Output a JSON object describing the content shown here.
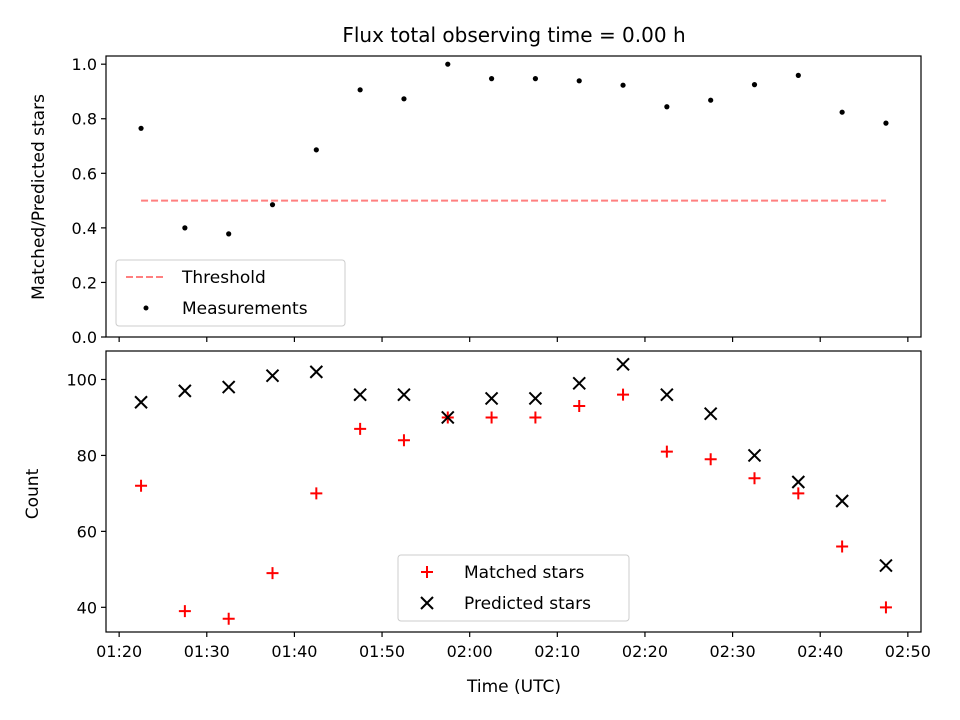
{
  "chart_data": [
    {
      "type": "scatter",
      "title": "Flux total observing time = 0.00 h",
      "xlabel": "",
      "ylabel": "Matched/Predicted stars",
      "ylim": [
        0.0,
        1.03
      ],
      "yticks": [
        0.0,
        0.2,
        0.4,
        0.6,
        0.8,
        1.0
      ],
      "yticklabels": [
        "0.0",
        "0.2",
        "0.4",
        "0.6",
        "0.8",
        "1.0"
      ],
      "xlim": [
        "01:18:30",
        "02:51:30"
      ],
      "x_is_time_of_day": true,
      "xticks": [
        "01:20",
        "01:30",
        "01:40",
        "01:50",
        "02:00",
        "02:10",
        "02:20",
        "02:30",
        "02:40",
        "02:50"
      ],
      "xticklabels": [],
      "threshold": {
        "name": "Threshold",
        "value": 0.5,
        "x_from": "01:22:30",
        "x_to": "02:47:30",
        "color": "#ff7f7f",
        "style": "dashed"
      },
      "series": [
        {
          "name": "Measurements",
          "marker": "dot",
          "color": "#000000",
          "x": [
            "01:22:30",
            "01:27:30",
            "01:32:30",
            "01:37:30",
            "01:42:30",
            "01:47:30",
            "01:52:30",
            "01:57:30",
            "02:02:30",
            "02:07:30",
            "02:12:30",
            "02:17:30",
            "02:22:30",
            "02:27:30",
            "02:32:30",
            "02:37:30",
            "02:42:30",
            "02:47:30"
          ],
          "y": [
            0.765,
            0.4,
            0.378,
            0.485,
            0.686,
            0.906,
            0.873,
            1.0,
            0.947,
            0.947,
            0.939,
            0.923,
            0.844,
            0.868,
            0.925,
            0.959,
            0.824,
            0.784
          ]
        }
      ],
      "legend": {
        "placement": "lower-left",
        "entries": [
          "Threshold",
          "Measurements"
        ]
      },
      "grid": false
    },
    {
      "type": "scatter",
      "title": "",
      "xlabel": "Time (UTC)",
      "ylabel": "Count",
      "ylim": [
        33.5,
        107.5
      ],
      "yticks": [
        40,
        60,
        80,
        100
      ],
      "yticklabels": [
        "40",
        "60",
        "80",
        "100"
      ],
      "xlim": [
        "01:18:30",
        "02:51:30"
      ],
      "x_is_time_of_day": true,
      "xticks": [
        "01:20",
        "01:30",
        "01:40",
        "01:50",
        "02:00",
        "02:10",
        "02:20",
        "02:30",
        "02:40",
        "02:50"
      ],
      "xticklabels": [
        "01:20",
        "01:30",
        "01:40",
        "01:50",
        "02:00",
        "02:10",
        "02:20",
        "02:30",
        "02:40",
        "02:50"
      ],
      "series": [
        {
          "name": "Matched stars",
          "marker": "plus",
          "color": "#ff0000",
          "x": [
            "01:22:30",
            "01:27:30",
            "01:32:30",
            "01:37:30",
            "01:42:30",
            "01:47:30",
            "01:52:30",
            "01:57:30",
            "02:02:30",
            "02:07:30",
            "02:12:30",
            "02:17:30",
            "02:22:30",
            "02:27:30",
            "02:32:30",
            "02:37:30",
            "02:42:30",
            "02:47:30"
          ],
          "y": [
            72,
            39,
            37,
            49,
            70,
            87,
            84,
            90,
            90,
            90,
            93,
            96,
            81,
            79,
            74,
            70,
            56,
            40
          ]
        },
        {
          "name": "Predicted stars",
          "marker": "x",
          "color": "#000000",
          "x": [
            "01:22:30",
            "01:27:30",
            "01:32:30",
            "01:37:30",
            "01:42:30",
            "01:47:30",
            "01:52:30",
            "01:57:30",
            "02:02:30",
            "02:07:30",
            "02:12:30",
            "02:17:30",
            "02:22:30",
            "02:27:30",
            "02:32:30",
            "02:37:30",
            "02:42:30",
            "02:47:30"
          ],
          "y": [
            94,
            97,
            98,
            101,
            102,
            96,
            96,
            90,
            95,
            95,
            99,
            104,
            96,
            91,
            80,
            73,
            68,
            51
          ]
        }
      ],
      "legend": {
        "placement": "lower-center",
        "entries": [
          "Matched stars",
          "Predicted stars"
        ]
      },
      "grid": false
    }
  ]
}
